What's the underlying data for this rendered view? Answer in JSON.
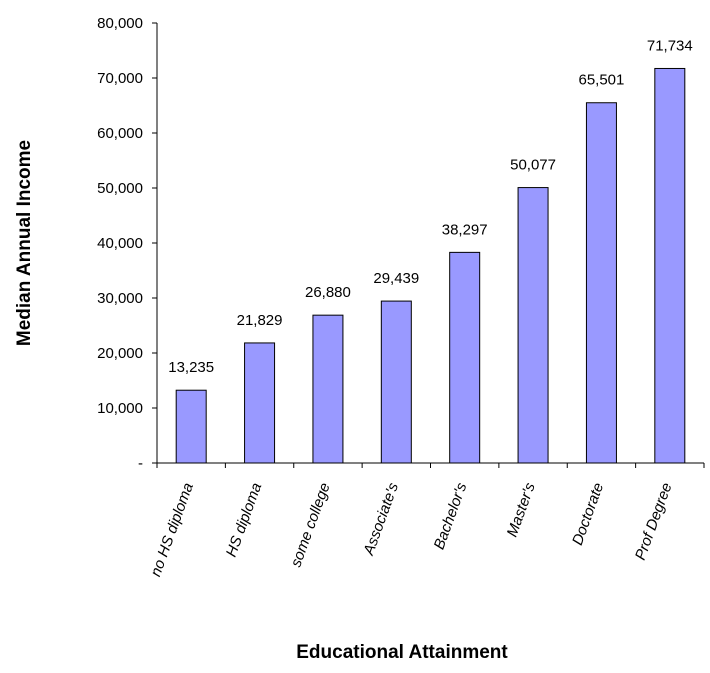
{
  "chart_data": {
    "type": "bar",
    "title": "",
    "xlabel": "Educational Attainment",
    "ylabel": "Median Annual Income",
    "categories": [
      "no HS diploma",
      "HS diploma",
      "some college",
      "Associate's",
      "Bachelor's",
      "Master's",
      "Doctorate",
      "Prof Degree"
    ],
    "values": [
      13235,
      21829,
      26880,
      29439,
      38297,
      50077,
      65501,
      71734
    ],
    "data_labels": [
      "13,235",
      "21,829",
      "26,880",
      "29,439",
      "38,297",
      "50,077",
      "65,501",
      "71,734"
    ],
    "y_ticks": [
      "-",
      "10,000",
      "20,000",
      "30,000",
      "40,000",
      "50,000",
      "60,000",
      "70,000",
      "80,000"
    ],
    "ylim": [
      0,
      80000
    ],
    "grid": false,
    "legend": "none",
    "bar_color": "#9999ff",
    "bar_edge_color": "#000000"
  }
}
